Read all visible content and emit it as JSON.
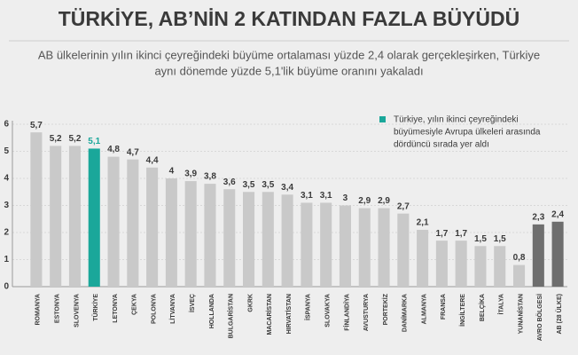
{
  "chart_data": {
    "type": "bar",
    "title": "TÜRKİYE, AB’NİN 2 KATINDAN FAZLA BÜYÜDÜ",
    "subtitle": [
      "AB ülkelerinin yılın ikinci çeyreğindeki büyüme ortalaması yüzde 2,4 olarak gerçekleşirken, Türkiye",
      "aynı dönemde yüzde 5,1'lik büyüme oranını yakaladı"
    ],
    "annotation": [
      "Türkiye, yılın ikinci çeyreğindeki",
      "büyümesiyle Avrupa ülkeleri arasında",
      "dördüncü sırada yer aldı"
    ],
    "annotation_color": "#1aa79a",
    "categories": [
      "ROMANYA",
      "ESTONYA",
      "SLOVENYA",
      "TÜRKİYE",
      "LETONYA",
      "ÇEKYA",
      "POLONYA",
      "LİTVANYA",
      "İSVEÇ",
      "HOLLANDA",
      "BULGARİSTAN",
      "GKRK",
      "MACARİSTAN",
      "HIRVATİSTAN",
      "İSPANYA",
      "SLOVAKYA",
      "FİNLANDİYA",
      "AVUSTURYA",
      "PORTEKİZ",
      "DANİMARKA",
      "ALMANYA",
      "FRANSA",
      "İNGİLTERE",
      "BELÇİKA",
      "İTALYA",
      "YUNANİSTAN",
      "AVRO BÖLGESİ",
      "AB (28 ÜLKE)"
    ],
    "values": [
      5.7,
      5.2,
      5.2,
      5.1,
      4.8,
      4.7,
      4.4,
      4,
      3.9,
      3.8,
      3.6,
      3.5,
      3.5,
      3.4,
      3.1,
      3.1,
      3,
      2.9,
      2.9,
      2.7,
      2.1,
      1.7,
      1.7,
      1.5,
      1.5,
      0.8,
      2.3,
      2.4
    ],
    "value_labels": [
      "5,7",
      "5,2",
      "5,2",
      "5,1",
      "4,8",
      "4,7",
      "4,4",
      "4",
      "3,9",
      "3,8",
      "3,6",
      "3,5",
      "3,5",
      "3,4",
      "3,1",
      "3,1",
      "3",
      "2,9",
      "2,9",
      "2,7",
      "2,1",
      "1,7",
      "1,7",
      "1,5",
      "1,5",
      "0,8",
      "2,3",
      "2,4"
    ],
    "colors": [
      "#c9c9c9",
      "#c9c9c9",
      "#c9c9c9",
      "#1aa79a",
      "#c9c9c9",
      "#c9c9c9",
      "#c9c9c9",
      "#c9c9c9",
      "#c9c9c9",
      "#c9c9c9",
      "#c9c9c9",
      "#c9c9c9",
      "#c9c9c9",
      "#c9c9c9",
      "#c9c9c9",
      "#c9c9c9",
      "#c9c9c9",
      "#c9c9c9",
      "#c9c9c9",
      "#c9c9c9",
      "#c9c9c9",
      "#c9c9c9",
      "#c9c9c9",
      "#c9c9c9",
      "#c9c9c9",
      "#c9c9c9",
      "#6e6e6e",
      "#6e6e6e"
    ],
    "ylim": [
      0,
      6
    ],
    "yticks": [
      0,
      1,
      2,
      3,
      4,
      5,
      6
    ],
    "grid": true
  }
}
